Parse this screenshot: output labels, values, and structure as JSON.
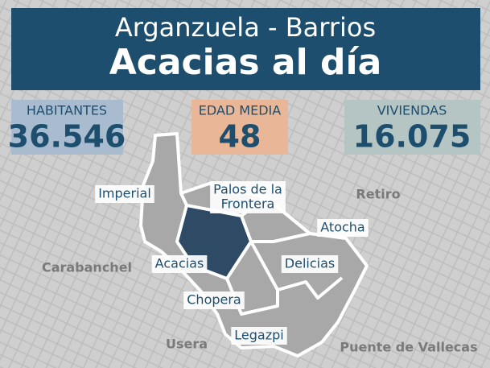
{
  "header": {
    "subtitle": "Arganzuela - Barrios",
    "title": "Acacias al día"
  },
  "stats": [
    {
      "label": "HABITANTES",
      "value": "36.546"
    },
    {
      "label": "EDAD MEDIA",
      "value": "48"
    },
    {
      "label": "VIVIENDAS",
      "value": "16.075"
    }
  ],
  "neighborhoods": [
    {
      "lines": [
        "Imperial"
      ]
    },
    {
      "lines": [
        "Palos de la",
        "Frontera"
      ]
    },
    {
      "lines": [
        "Atocha"
      ]
    },
    {
      "lines": [
        "Acacias"
      ]
    },
    {
      "lines": [
        "Delicias"
      ]
    },
    {
      "lines": [
        "Chopera"
      ]
    },
    {
      "lines": [
        "Legazpi"
      ]
    }
  ],
  "surroundings": [
    "Carabanchel",
    "Retiro",
    "Usera",
    "Puente de Vallecas"
  ]
}
